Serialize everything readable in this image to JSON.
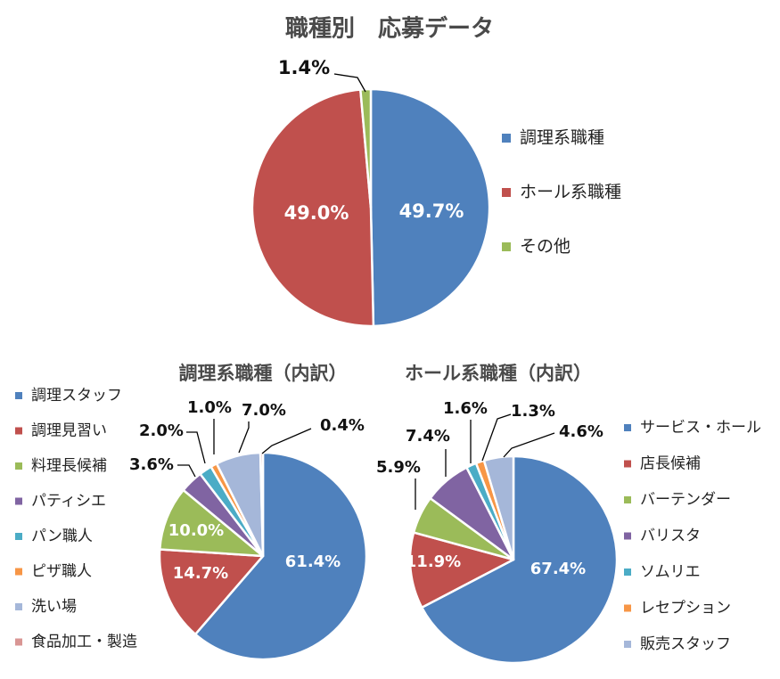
{
  "colors": {
    "blue": "#4f81bd",
    "red": "#c0504d",
    "green": "#9bbb59",
    "purple": "#8064a2",
    "teal": "#4bacc6",
    "orange": "#f79646",
    "lavender": "#a5b7d9",
    "pink": "#d99694",
    "leader": "#000000"
  },
  "chart_data": [
    {
      "type": "pie",
      "title": "職種別　応募データ",
      "categories": [
        "調理系職種",
        "ホール系職種",
        "その他"
      ],
      "values": [
        49.7,
        49.0,
        1.4
      ],
      "labels": [
        "49.7%",
        "49.0%",
        "1.4%"
      ],
      "colors": [
        "#4f81bd",
        "#c0504d",
        "#9bbb59"
      ],
      "legend": "right"
    },
    {
      "type": "pie",
      "title": "調理系職種（内訳）",
      "categories": [
        "調理スタッフ",
        "調理見習い",
        "料理長候補",
        "パティシエ",
        "パン職人",
        "ピザ職人",
        "洗い場",
        "食品加工・製造"
      ],
      "values": [
        61.4,
        14.7,
        10.0,
        3.6,
        2.0,
        1.0,
        7.0,
        0.4
      ],
      "labels": [
        "61.4%",
        "14.7%",
        "10.0%",
        "3.6%",
        "2.0%",
        "1.0%",
        "7.0%",
        "0.4%"
      ],
      "colors": [
        "#4f81bd",
        "#c0504d",
        "#9bbb59",
        "#8064a2",
        "#4bacc6",
        "#f79646",
        "#a5b7d9",
        "#d99694"
      ],
      "legend": "left"
    },
    {
      "type": "pie",
      "title": "ホール系職種（内訳）",
      "categories": [
        "サービス・ホール",
        "店長候補",
        "バーテンダー",
        "バリスタ",
        "ソムリエ",
        "レセプション",
        "販売スタッフ"
      ],
      "values": [
        67.4,
        11.9,
        5.9,
        7.4,
        1.6,
        1.3,
        4.6
      ],
      "labels": [
        "67.4%",
        "11.9%",
        "5.9%",
        "7.4%",
        "1.6%",
        "1.3%",
        "4.6%"
      ],
      "colors": [
        "#4f81bd",
        "#c0504d",
        "#9bbb59",
        "#8064a2",
        "#4bacc6",
        "#f79646",
        "#a5b7d9"
      ],
      "legend": "right"
    }
  ]
}
